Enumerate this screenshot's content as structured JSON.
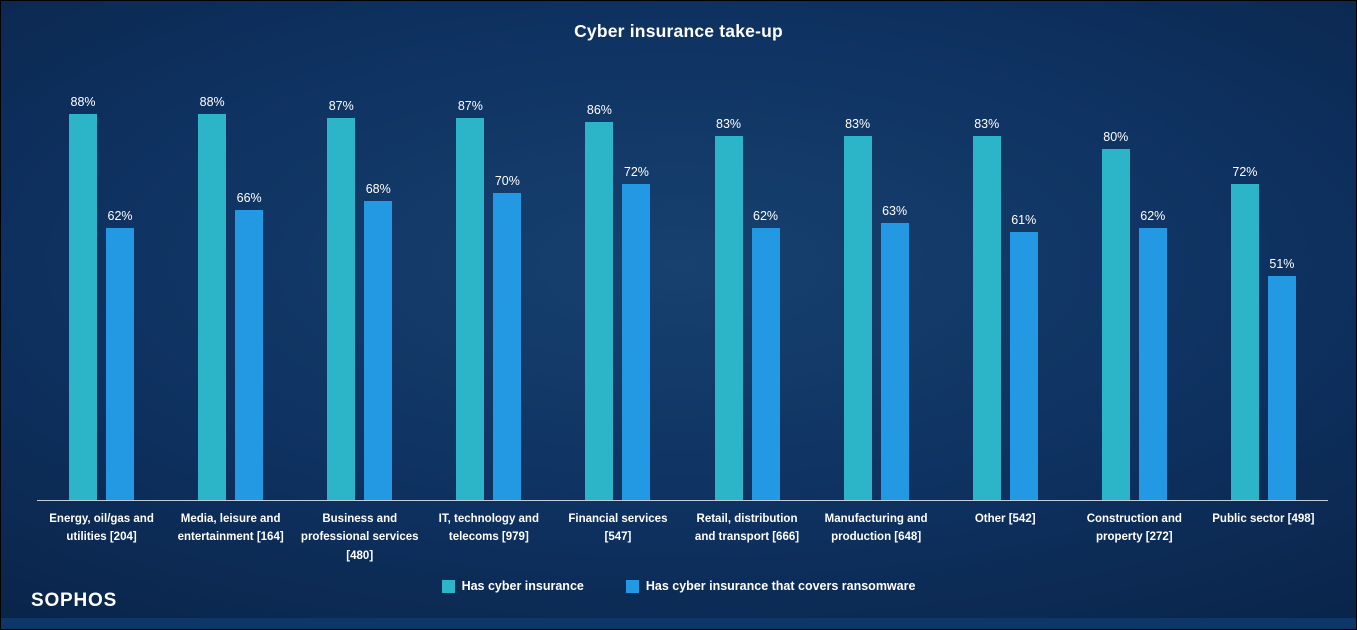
{
  "title": "Cyber insurance take-up",
  "brand": {
    "logo_text": "SOPHOS"
  },
  "colors": {
    "series1": "#2cb5c8",
    "series2": "#2499e3",
    "background_center": "#17416f",
    "background_edge": "#081f40",
    "footer_band": "#0d3769",
    "text": "#ffffff"
  },
  "chart_data": {
    "type": "bar",
    "title": "Cyber insurance take-up",
    "categories": [
      "Energy, oil/gas and utilities [204]",
      "Media, leisure and entertainment [164]",
      "Business and professional services [480]",
      "IT, technology and telecoms [979]",
      "Financial services [547]",
      "Retail, distribution and transport [666]",
      "Manufacturing and production [648]",
      "Other [542]",
      "Construction and property [272]",
      "Public sector [498]"
    ],
    "series": [
      {
        "name": "Has cyber insurance",
        "color": "#2cb5c8",
        "values": [
          88,
          88,
          87,
          87,
          86,
          83,
          83,
          83,
          80,
          72
        ]
      },
      {
        "name": "Has cyber insurance that covers ransomware",
        "color": "#2499e3",
        "values": [
          62,
          66,
          68,
          70,
          72,
          62,
          63,
          61,
          62,
          51
        ]
      }
    ],
    "ylim": [
      0,
      100
    ],
    "value_label_format": "{v}%",
    "grid": false,
    "legend_position": "bottom"
  }
}
